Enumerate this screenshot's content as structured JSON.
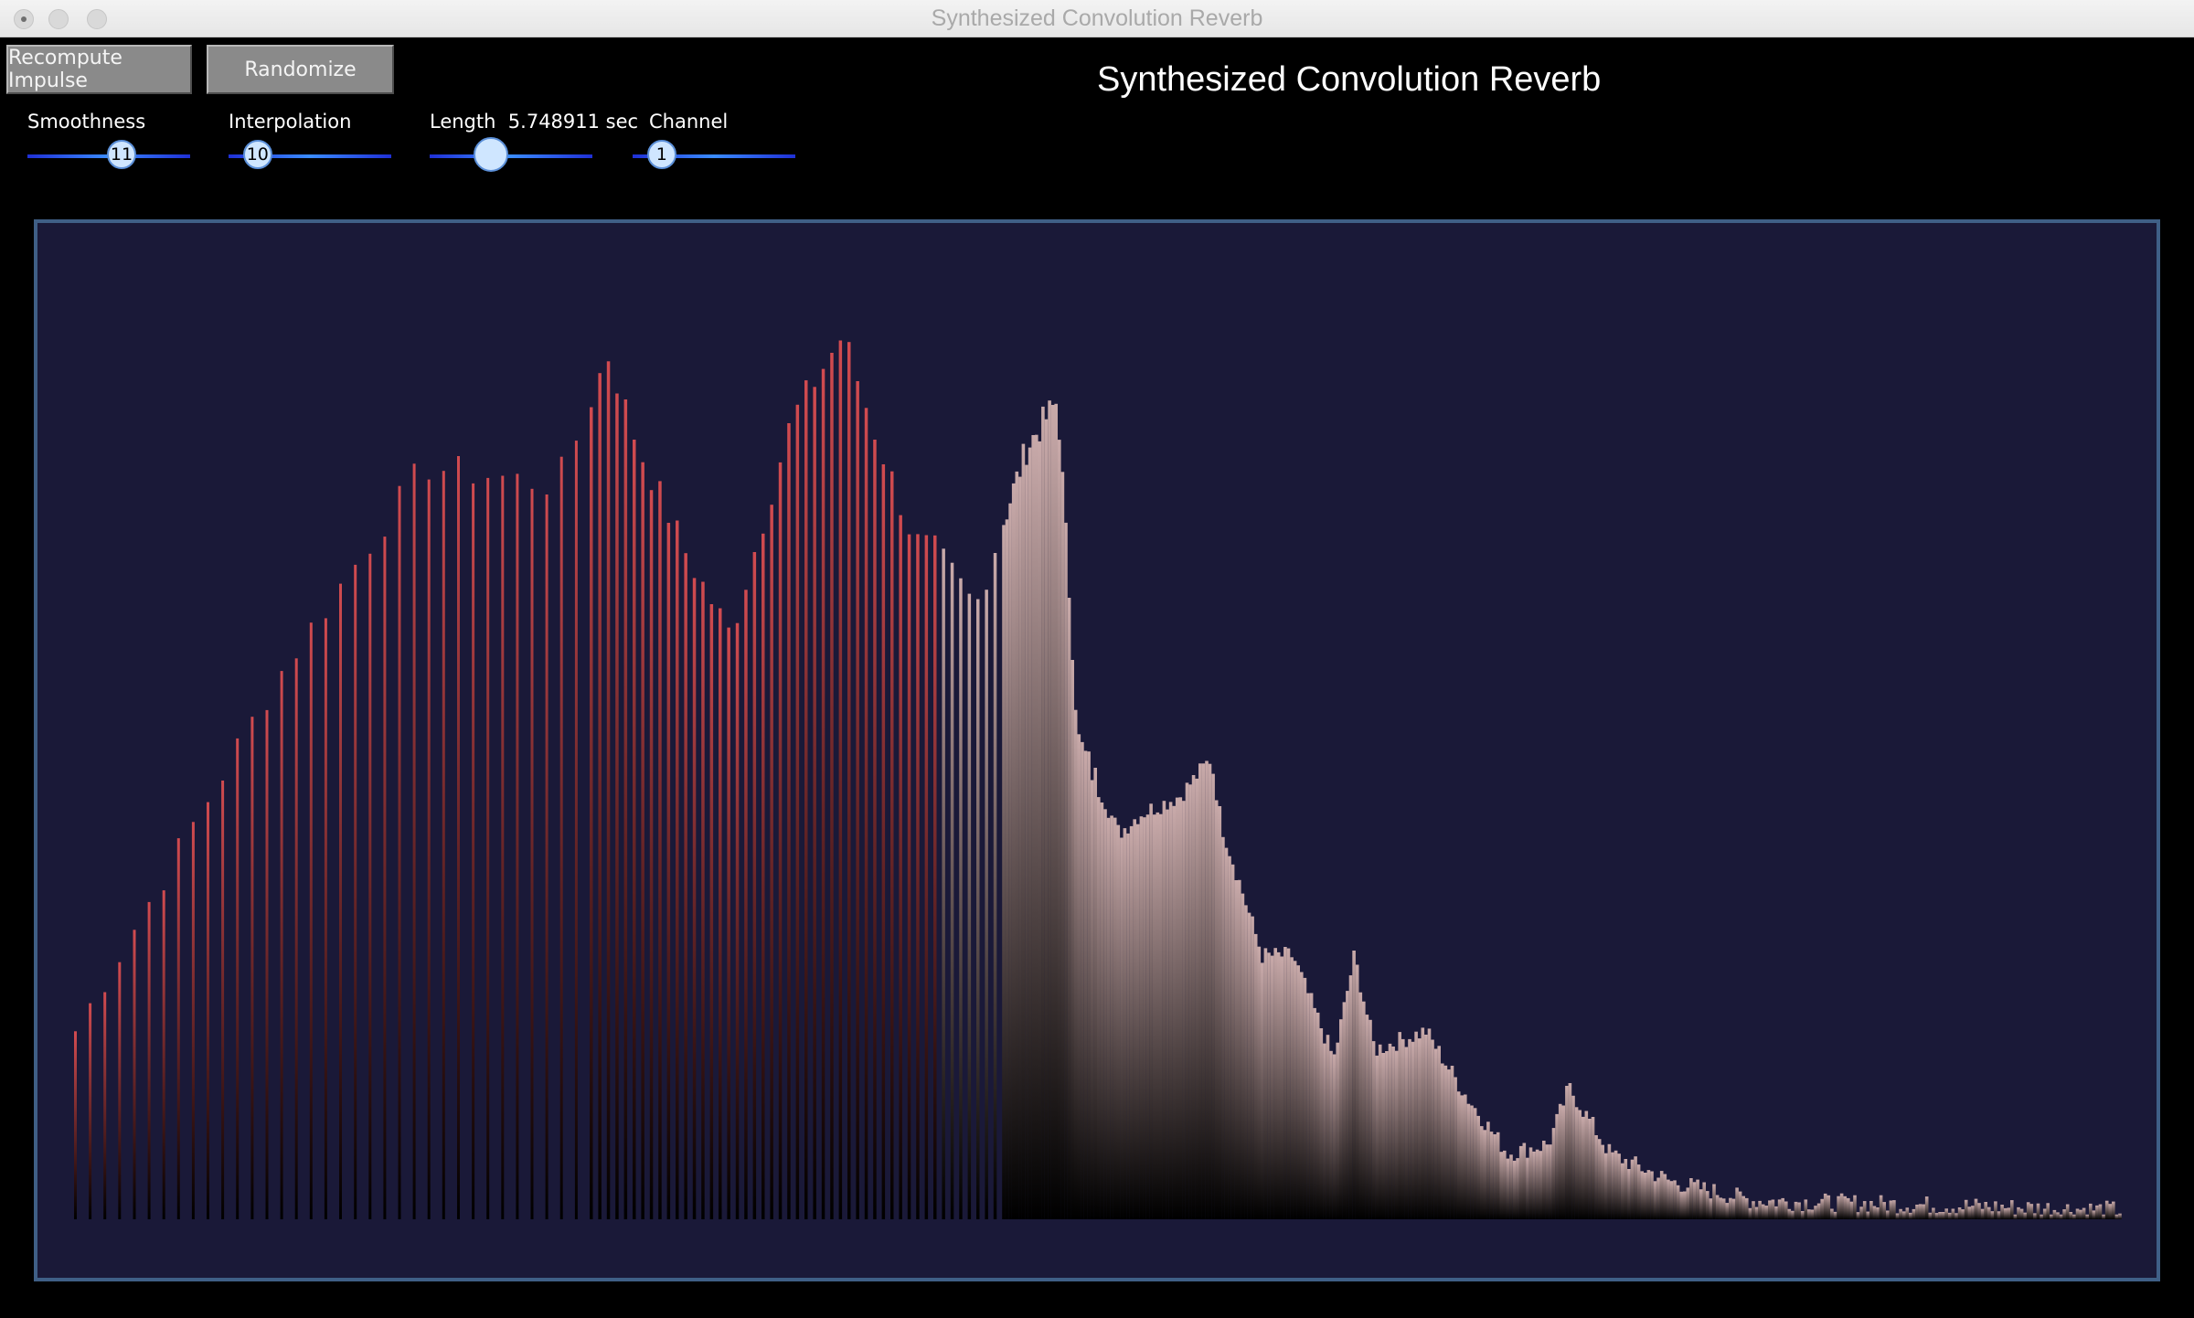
{
  "window": {
    "title": "Synthesized Convolution Reverb"
  },
  "toolbar": {
    "recompute_label": "Recompute Impulse",
    "randomize_label": "Randomize"
  },
  "app_title": "Synthesized Convolution Reverb",
  "sliders": {
    "smoothness": {
      "label": "Smoothness",
      "value": "11",
      "fraction": 0.5
    },
    "interpolation": {
      "label": "Interpolation",
      "value": "10",
      "fraction": 0.1
    },
    "length": {
      "label": "Length",
      "value_text": "5.748911 sec",
      "fraction": 0.3
    },
    "channel": {
      "label": "Channel",
      "value": "1",
      "fraction": 0.1
    }
  },
  "colors": {
    "background": "#000000",
    "plot_background": "#1a1938",
    "plot_border": "#3f5f86",
    "early_bar_color": "#d24b50",
    "late_bar_color": "#c9aaaa",
    "slider_track": "#1f30d6"
  },
  "chart_data": {
    "type": "bar",
    "description_series": "impulse_envelope",
    "envelope_points": [
      [
        0.0,
        0.2
      ],
      [
        0.1,
        0.58
      ],
      [
        0.17,
        0.8
      ],
      [
        0.235,
        0.78
      ],
      [
        0.245,
        0.83
      ],
      [
        0.26,
        0.92
      ],
      [
        0.275,
        0.82
      ],
      [
        0.3,
        0.7
      ],
      [
        0.32,
        0.62
      ],
      [
        0.35,
        0.85
      ],
      [
        0.375,
        0.94
      ],
      [
        0.39,
        0.84
      ],
      [
        0.41,
        0.72
      ],
      [
        0.42,
        0.71
      ],
      [
        0.44,
        0.65
      ],
      [
        0.465,
        0.82
      ],
      [
        0.48,
        0.87
      ],
      [
        0.49,
        0.51
      ],
      [
        0.51,
        0.41
      ],
      [
        0.52,
        0.43
      ],
      [
        0.54,
        0.45
      ],
      [
        0.555,
        0.49
      ],
      [
        0.56,
        0.42
      ],
      [
        0.58,
        0.28
      ],
      [
        0.595,
        0.28
      ],
      [
        0.615,
        0.17
      ],
      [
        0.625,
        0.28
      ],
      [
        0.635,
        0.18
      ],
      [
        0.66,
        0.2
      ],
      [
        0.68,
        0.13
      ],
      [
        0.7,
        0.07
      ],
      [
        0.72,
        0.08
      ],
      [
        0.73,
        0.14
      ],
      [
        0.75,
        0.07
      ],
      [
        0.78,
        0.04
      ],
      [
        0.82,
        0.02
      ],
      [
        1.0,
        0.01
      ]
    ],
    "sparse_until": 0.45,
    "early_color_until": 0.42
  }
}
